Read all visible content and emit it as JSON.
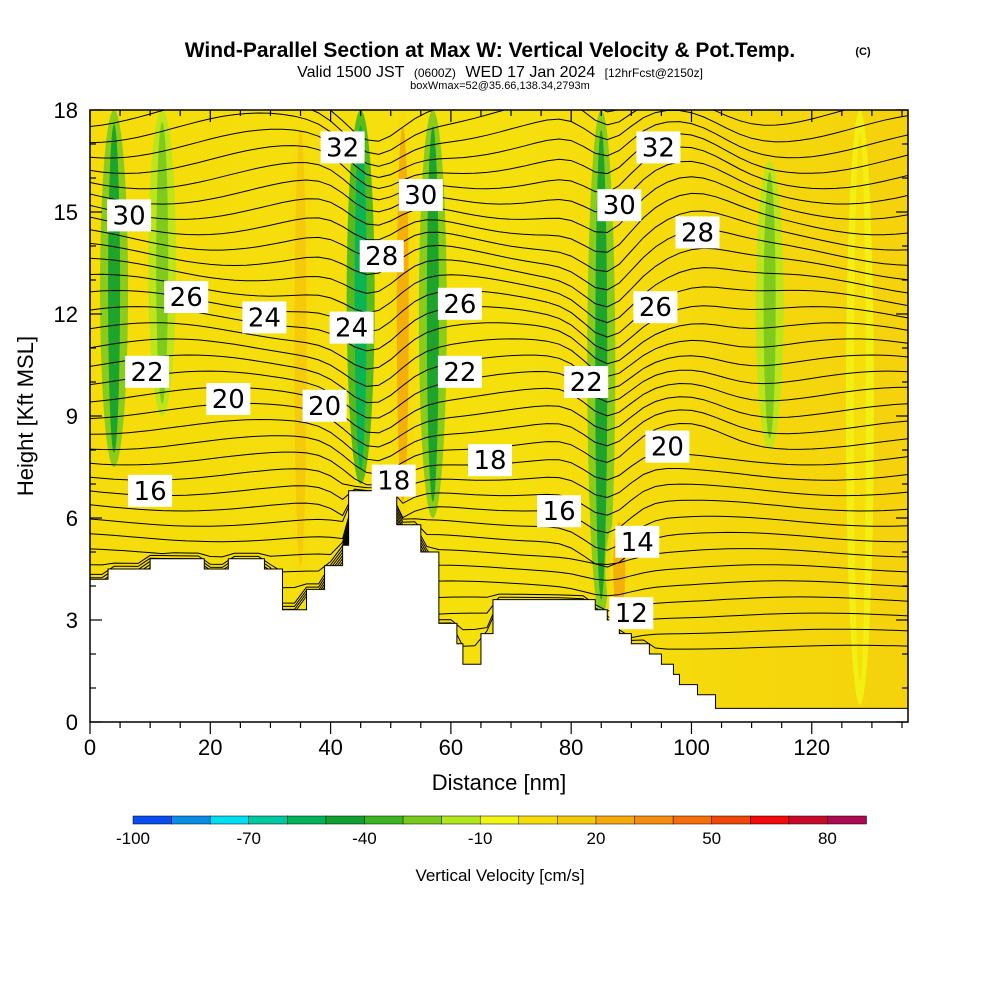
{
  "title": {
    "main": "Wind-Parallel Section at Max W: Vertical Velocity & Pot.Temp.",
    "copyright": "(C)",
    "valid_prefix": "Valid 1500 JST",
    "valid_utc": "(0600Z)",
    "valid_date": "WED 17 Jan 2024",
    "forecast": "[12hrFcst@2150z]",
    "box_info": "boxWmax=52@35.66,138.34,2793m"
  },
  "chart_data": {
    "type": "heatmap",
    "xlabel": "Distance [nm]",
    "ylabel": "Height [Kft MSL]",
    "xlim": [
      0,
      136
    ],
    "ylim": [
      0,
      18
    ],
    "x_ticks": [
      0,
      20,
      40,
      60,
      80,
      100,
      120
    ],
    "y_ticks": [
      0,
      3,
      6,
      9,
      12,
      15,
      18
    ],
    "colorbar": {
      "title": "Vertical Velocity [cm/s]",
      "min": -100,
      "max": 90,
      "step": 10,
      "tick_values": [
        -100,
        -70,
        -40,
        -10,
        20,
        50,
        80
      ],
      "colors": [
        "#1e14e6",
        "#0a4bf0",
        "#0a8ce6",
        "#00dcf0",
        "#00c8a0",
        "#00b45a",
        "#10a030",
        "#3cb41e",
        "#78c81e",
        "#b4e61e",
        "#f0f514",
        "#f5dc0a",
        "#f5c80a",
        "#f5aa0a",
        "#f58c0a",
        "#f56e0a",
        "#f0460a",
        "#f00a0a",
        "#c80a28",
        "#aa0a50",
        "#8c0a78",
        "#5a0a8c"
      ]
    },
    "w_features": [
      {
        "x": 4,
        "y_low": 7.5,
        "y_high": 18,
        "w": -35
      },
      {
        "x": 12,
        "y_low": 9,
        "y_high": 18,
        "w": -15
      },
      {
        "x": 35,
        "y_low": 4,
        "y_high": 18,
        "w": 25
      },
      {
        "x": 45,
        "y_low": 7,
        "y_high": 18,
        "w": -45
      },
      {
        "x": 52,
        "y_low": 6,
        "y_high": 18,
        "w": 30
      },
      {
        "x": 57,
        "y_low": 6,
        "y_high": 18,
        "w": -40
      },
      {
        "x": 85,
        "y_low": 3,
        "y_high": 18,
        "w": -40
      },
      {
        "x": 88,
        "y_low": 3,
        "y_high": 6,
        "w": 30
      },
      {
        "x": 113,
        "y_low": 8,
        "y_high": 16.5,
        "w": -15
      },
      {
        "x": 128,
        "y_low": 0.5,
        "y_high": 18,
        "w": 15
      }
    ],
    "terrain_kft": [
      [
        0,
        4.2
      ],
      [
        3,
        4.2
      ],
      [
        3,
        4.5
      ],
      [
        10,
        4.5
      ],
      [
        10,
        4.8
      ],
      [
        19,
        4.8
      ],
      [
        19,
        4.5
      ],
      [
        23,
        4.5
      ],
      [
        23,
        4.8
      ],
      [
        29,
        4.8
      ],
      [
        29,
        4.5
      ],
      [
        32,
        4.5
      ],
      [
        32,
        3.3
      ],
      [
        36,
        3.3
      ],
      [
        36,
        3.9
      ],
      [
        39,
        3.9
      ],
      [
        39,
        4.6
      ],
      [
        42,
        4.6
      ],
      [
        42,
        5.2
      ],
      [
        43,
        5.2
      ],
      [
        43,
        6.8
      ],
      [
        51,
        6.8
      ],
      [
        51,
        5.8
      ],
      [
        55,
        5.8
      ],
      [
        55,
        5.0
      ],
      [
        58,
        5.0
      ],
      [
        58,
        2.9
      ],
      [
        61,
        2.9
      ],
      [
        61,
        2.3
      ],
      [
        62,
        2.3
      ],
      [
        62,
        1.7
      ],
      [
        65,
        1.7
      ],
      [
        65,
        2.6
      ],
      [
        67,
        2.6
      ],
      [
        67,
        3.6
      ],
      [
        70,
        3.6
      ],
      [
        70,
        3.6
      ],
      [
        84,
        3.6
      ],
      [
        84,
        3.3
      ],
      [
        86,
        3.3
      ],
      [
        86,
        3.0
      ],
      [
        88,
        3.0
      ],
      [
        88,
        2.6
      ],
      [
        90,
        2.6
      ],
      [
        90,
        2.3
      ],
      [
        93,
        2.3
      ],
      [
        93,
        2.0
      ],
      [
        95,
        2.0
      ],
      [
        95,
        1.7
      ],
      [
        97,
        1.7
      ],
      [
        97,
        1.4
      ],
      [
        98,
        1.4
      ],
      [
        98,
        1.1
      ],
      [
        101,
        1.1
      ],
      [
        101,
        0.8
      ],
      [
        104,
        0.8
      ],
      [
        104,
        0.4
      ],
      [
        136,
        0.4
      ]
    ],
    "theta_contours_degC": [
      12,
      14,
      16,
      18,
      20,
      22,
      24,
      26,
      28,
      30,
      32
    ],
    "contour_labels": [
      {
        "text": "32",
        "x": 42,
        "y": 16.9
      },
      {
        "text": "32",
        "x": 94.5,
        "y": 16.9
      },
      {
        "text": "30",
        "x": 6.5,
        "y": 14.9
      },
      {
        "text": "30",
        "x": 55,
        "y": 15.5
      },
      {
        "text": "30",
        "x": 88,
        "y": 15.2
      },
      {
        "text": "28",
        "x": 48.5,
        "y": 13.7
      },
      {
        "text": "28",
        "x": 101,
        "y": 14.4
      },
      {
        "text": "26",
        "x": 16,
        "y": 12.5
      },
      {
        "text": "26",
        "x": 61.5,
        "y": 12.3
      },
      {
        "text": "26",
        "x": 94,
        "y": 12.2
      },
      {
        "text": "24",
        "x": 29,
        "y": 11.9
      },
      {
        "text": "24",
        "x": 43.5,
        "y": 11.6
      },
      {
        "text": "22",
        "x": 9.5,
        "y": 10.3
      },
      {
        "text": "22",
        "x": 61.5,
        "y": 10.3
      },
      {
        "text": "22",
        "x": 82.5,
        "y": 10.0
      },
      {
        "text": "20",
        "x": 23,
        "y": 9.5
      },
      {
        "text": "20",
        "x": 39,
        "y": 9.3
      },
      {
        "text": "20",
        "x": 96,
        "y": 8.1
      },
      {
        "text": "18",
        "x": 50.5,
        "y": 7.1
      },
      {
        "text": "18",
        "x": 66.5,
        "y": 7.7
      },
      {
        "text": "16",
        "x": 10,
        "y": 6.8
      },
      {
        "text": "16",
        "x": 78,
        "y": 6.2
      },
      {
        "text": "14",
        "x": 91,
        "y": 5.3
      },
      {
        "text": "12",
        "x": 90,
        "y": 3.2
      }
    ]
  }
}
